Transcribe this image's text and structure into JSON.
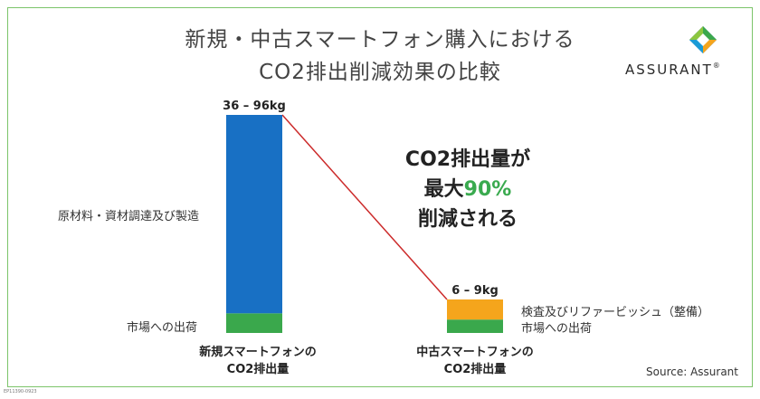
{
  "title": {
    "line1": "新規・中古スマートフォン購入における",
    "line2": "CO2排出削減効果の比較"
  },
  "brand": {
    "name": "ASSURANT",
    "mark": "®"
  },
  "callout": {
    "line1": "CO2排出量が",
    "line2_prefix": "最大",
    "line2_highlight": "90%",
    "line3": "削減される"
  },
  "source": "Source: Assurant",
  "doc_id": "EP11390-0923",
  "chart_data": {
    "type": "bar",
    "stacked": true,
    "unit": "kg",
    "categories": [
      "新規スマートフォンの\nCO2排出量",
      "中古スマートフォンの\nCO2排出量"
    ],
    "bars": [
      {
        "category": "新規スマートフォンの CO2排出量",
        "total_label": "36 – 96kg",
        "segments": [
          {
            "name": "市場への出荷",
            "fraction": 0.09,
            "color": "#3aa84c"
          },
          {
            "name": "原材料・資材調達及び製造",
            "fraction": 0.91,
            "color": "#1870c4"
          }
        ]
      },
      {
        "category": "中古スマートフォンの CO2排出量",
        "total_label": "6 – 9kg",
        "segments": [
          {
            "name": "市場への出荷",
            "fraction": 0.4,
            "color": "#3aa84c"
          },
          {
            "name": "検査及びリファービッシュ（整備）",
            "fraction": 0.6,
            "color": "#f5a51c"
          }
        ]
      }
    ],
    "connector_color": "#cc2b2b",
    "reduction": "90%"
  },
  "colors": {
    "frame": "#7cc46a",
    "accent_green": "#3aaa4f",
    "blue": "#1870c4",
    "orange": "#f5a51c",
    "red": "#cc2b2b"
  }
}
